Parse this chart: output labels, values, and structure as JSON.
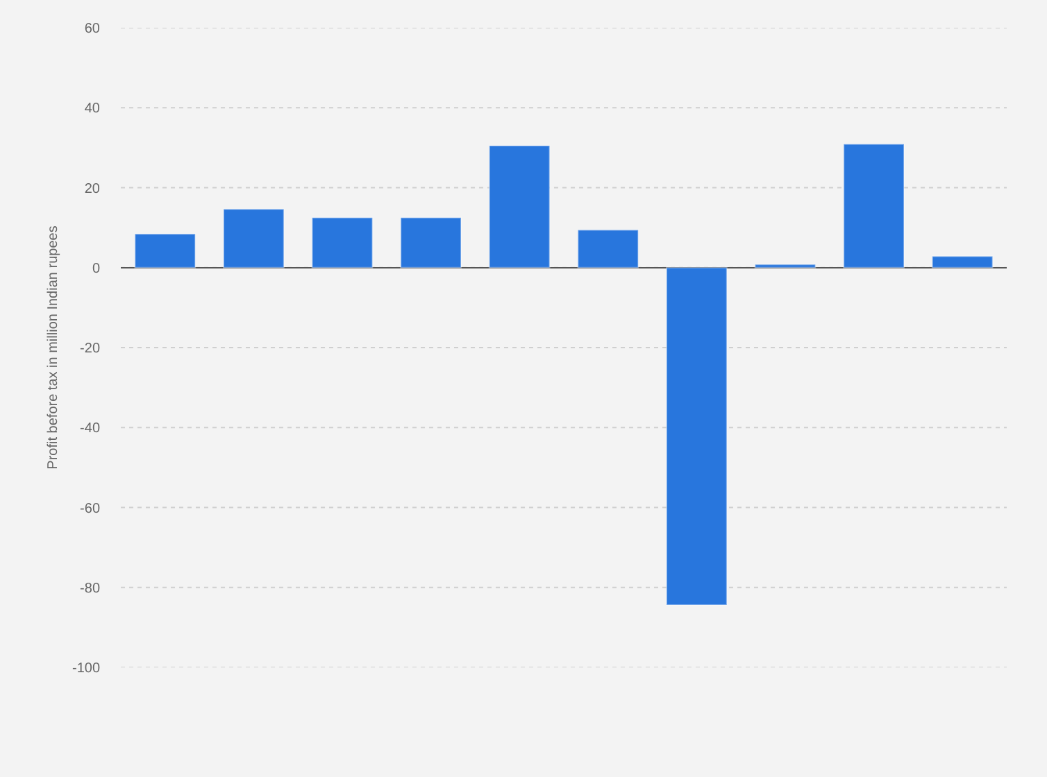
{
  "chart_data": {
    "type": "bar",
    "ylabel": "Profit before tax in million Indian rupees",
    "categories": [
      null,
      null,
      null,
      null,
      null,
      null,
      null,
      null,
      null,
      null
    ],
    "values": [
      8.4,
      14.6,
      12.5,
      12.5,
      30.5,
      9.4,
      -84.4,
      0.8,
      30.9,
      2.8
    ],
    "color": "#2876dd",
    "ylim": [
      -100,
      60
    ],
    "yticks": [
      -100,
      -80,
      -60,
      -40,
      -20,
      0,
      20,
      40,
      60
    ],
    "grid": "y",
    "legend": false
  }
}
